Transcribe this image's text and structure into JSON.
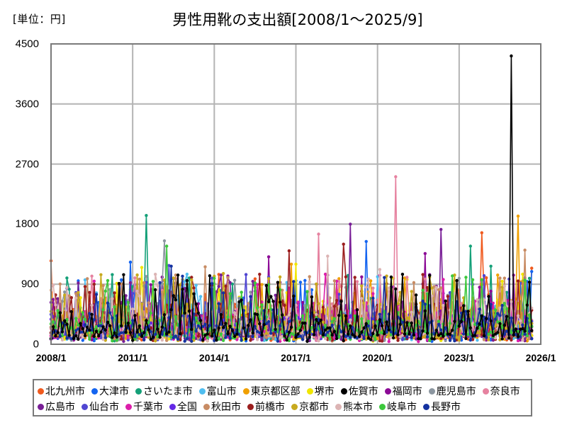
{
  "header": {
    "unit_label": "[単位：円]",
    "title": "男性用靴の支出額[2008/1～2025/9]"
  },
  "chart_data": {
    "type": "line",
    "title": "男性用靴の支出額[2008/1～2025/9]",
    "unit": "円",
    "xlabel": "",
    "ylabel": "",
    "ylim": [
      0,
      4500
    ],
    "xlim": [
      "2008/1",
      "2026/1"
    ],
    "yticks": [
      0,
      900,
      1800,
      2700,
      3600,
      4500
    ],
    "xticks": [
      "2008/1",
      "2011/1",
      "2014/1",
      "2017/1",
      "2020/1",
      "2023/1",
      "2026/1"
    ],
    "grid": true,
    "legend_position": "bottom",
    "period": {
      "start": "2008/1",
      "end": "2025/9",
      "frequency": "monthly"
    },
    "typical_range": [
      0,
      900
    ],
    "series": [
      {
        "name": "北九州市",
        "color": "#f05a1e",
        "peaks": [
          {
            "x": "2008/1",
            "y": 1250
          },
          {
            "x": "2023/11",
            "y": 1670
          },
          {
            "x": "2025/9",
            "y": 1140
          }
        ]
      },
      {
        "name": "大津市",
        "color": "#1464f0",
        "peaks": [
          {
            "x": "2010/12",
            "y": 1230
          },
          {
            "x": "2019/8",
            "y": 1540
          },
          {
            "x": "2025/9",
            "y": 1090
          }
        ]
      },
      {
        "name": "さいたま市",
        "color": "#14a078",
        "peaks": [
          {
            "x": "2011/7",
            "y": 1930
          },
          {
            "x": "2023/6",
            "y": 1470
          },
          {
            "x": "2024/3",
            "y": 1170
          }
        ]
      },
      {
        "name": "富山市",
        "color": "#50bef0",
        "peaks": [
          {
            "x": "2013/1",
            "y": 1050
          }
        ]
      },
      {
        "name": "東京都区部",
        "color": "#f0a000",
        "peaks": [
          {
            "x": "2025/3",
            "y": 1920
          },
          {
            "x": "2016/11",
            "y": 1200
          }
        ]
      },
      {
        "name": "堺市",
        "color": "#f0e600",
        "peaks": [
          {
            "x": "2011/5",
            "y": 1150
          },
          {
            "x": "2017/1",
            "y": 1200
          }
        ]
      },
      {
        "name": "佐賀市",
        "color": "#000000",
        "peaks": [
          {
            "x": "2024/12",
            "y": 4320
          },
          {
            "x": "2025/8",
            "y": 930
          }
        ]
      },
      {
        "name": "福岡市",
        "color": "#8c0a96",
        "peaks": [
          {
            "x": "2016/1",
            "y": 1310
          },
          {
            "x": "2021/10",
            "y": 1360
          }
        ]
      },
      {
        "name": "鹿児島市",
        "color": "#8c96a0",
        "peaks": [
          {
            "x": "2012/3",
            "y": 1550
          }
        ]
      },
      {
        "name": "奈良市",
        "color": "#e682a0",
        "peaks": [
          {
            "x": "2020/9",
            "y": 2510
          },
          {
            "x": "2017/11",
            "y": 1650
          }
        ]
      },
      {
        "name": "広島市",
        "color": "#781e96",
        "peaks": [
          {
            "x": "2019/1",
            "y": 1800
          },
          {
            "x": "2022/5",
            "y": 1720
          }
        ]
      },
      {
        "name": "仙台市",
        "color": "#5046d2",
        "peaks": [
          {
            "x": "2012/5",
            "y": 1180
          }
        ]
      },
      {
        "name": "千葉市",
        "color": "#dc1eaa",
        "peaks": [
          {
            "x": "2018/2",
            "y": 1050
          }
        ]
      },
      {
        "name": "全国",
        "color": "#6428e6",
        "peaks": [
          {
            "x": "2016/6",
            "y": 700
          }
        ]
      },
      {
        "name": "秋田市",
        "color": "#c88c64",
        "peaks": [
          {
            "x": "2025/6",
            "y": 1410
          },
          {
            "x": "2013/9",
            "y": 1160
          }
        ]
      },
      {
        "name": "前橋市",
        "color": "#9b1e1e",
        "peaks": [
          {
            "x": "2016/10",
            "y": 1400
          },
          {
            "x": "2018/10",
            "y": 1500
          }
        ]
      },
      {
        "name": "京都市",
        "color": "#c8aa1e",
        "peaks": [
          {
            "x": "2014/5",
            "y": 1060
          }
        ]
      },
      {
        "name": "熊本市",
        "color": "#dcb4b4",
        "peaks": [
          {
            "x": "2018/3",
            "y": 1320
          },
          {
            "x": "2020/2",
            "y": 1120
          }
        ]
      },
      {
        "name": "岐阜市",
        "color": "#3cc83c",
        "peaks": [
          {
            "x": "2012/4",
            "y": 1470
          }
        ]
      },
      {
        "name": "長野市",
        "color": "#1432a0",
        "peaks": [
          {
            "x": "2012/6",
            "y": 1170
          }
        ]
      }
    ]
  },
  "legend": {
    "rows": [
      [
        0,
        1,
        2,
        3,
        4,
        5,
        6,
        7,
        8,
        9
      ],
      [
        10,
        11,
        12,
        13,
        14,
        15,
        16,
        17,
        18,
        19
      ]
    ]
  }
}
